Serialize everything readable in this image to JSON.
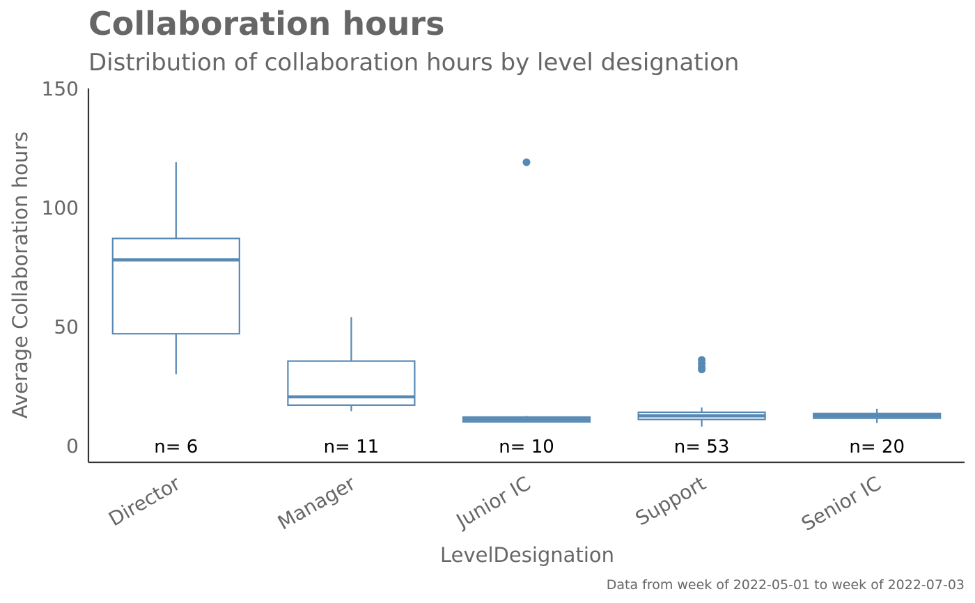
{
  "chart_data": {
    "type": "boxplot",
    "title": "Collaboration hours",
    "subtitle": "Distribution of collaboration hours by level designation",
    "xlabel": "LevelDesignation",
    "ylabel": "Average Collaboration hours",
    "caption": "Data from week of 2022-05-01 to week of 2022-07-03",
    "ylim": [
      0,
      150
    ],
    "yticks": [
      0,
      50,
      100,
      150
    ],
    "grid": false,
    "color": "#5689B4",
    "categories": [
      "Director",
      "Manager",
      "Junior IC",
      "Support",
      "Senior IC"
    ],
    "boxes": [
      {
        "category": "Director",
        "min": 30,
        "q1": 47,
        "median": 78,
        "q3": 87,
        "max": 119,
        "outliers": [],
        "n_label": "n= 6"
      },
      {
        "category": "Manager",
        "min": 14.5,
        "q1": 17,
        "median": 20.5,
        "q3": 35.5,
        "max": 54,
        "outliers": [],
        "n_label": "n= 11"
      },
      {
        "category": "Junior IC",
        "min": 10,
        "q1": 10,
        "median": 11,
        "q3": 12,
        "max": 12.5,
        "outliers": [
          119
        ],
        "n_label": "n= 10"
      },
      {
        "category": "Support",
        "min": 8,
        "q1": 11,
        "median": 12.5,
        "q3": 14,
        "max": 16,
        "outliers": [
          32,
          33,
          34.5,
          36
        ],
        "n_label": "n= 53"
      },
      {
        "category": "Senior IC",
        "min": 9.5,
        "q1": 11.5,
        "median": 12.5,
        "q3": 13.5,
        "max": 15.5,
        "outliers": [],
        "n_label": "n= 20"
      }
    ]
  }
}
